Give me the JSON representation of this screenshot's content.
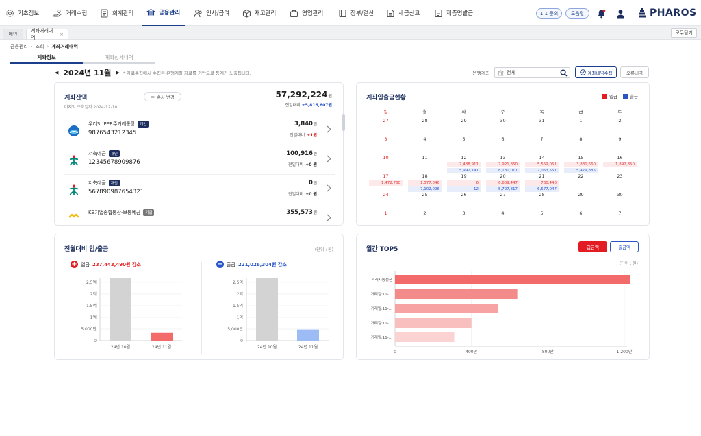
{
  "nav": {
    "items": [
      {
        "label": "기초정보",
        "icon": "gear-icon"
      },
      {
        "label": "거래수집",
        "icon": "hand-coins-icon"
      },
      {
        "label": "회계관리",
        "icon": "ledger-icon"
      },
      {
        "label": "금융관리",
        "icon": "bank-icon"
      },
      {
        "label": "인사/급여",
        "icon": "people-icon"
      },
      {
        "label": "재고관리",
        "icon": "box-icon"
      },
      {
        "label": "영업관리",
        "icon": "briefcase-icon"
      },
      {
        "label": "장부/결산",
        "icon": "book-icon"
      },
      {
        "label": "세금신고",
        "icon": "tax-doc-icon"
      },
      {
        "label": "제증명발급",
        "icon": "certificate-icon"
      }
    ],
    "inquiry": "1:1 문의",
    "help": "도움말",
    "brand": "PHAROS"
  },
  "tabs": {
    "home": "메인",
    "current": "계좌거래내역",
    "close_all": "모두닫기"
  },
  "breadcrumb": [
    "금융관리",
    "조회",
    "계좌거래내역"
  ],
  "subtabs": [
    "계좌정보",
    "계좌상세내역"
  ],
  "toolbar": {
    "month": "2024년 11월",
    "note": "* 자료수집에서 수집된 은행계좌 자료를 기반으로 등계가 노출됩니다.",
    "bank_label": "은행계좌",
    "bank_value": "전체",
    "collect_btn": "계좌내역수집",
    "error_btn": "오류내역"
  },
  "balance": {
    "title": "계좌잔액",
    "order_btn": "순서 변경",
    "last_date": "마지막 조회일자 2024-12-10",
    "total": "57,292,224",
    "unit": "원",
    "total_diff_label": "전일대비",
    "total_diff": "+5,816,607원",
    "accounts": [
      {
        "name": "우리SUPER주거래통장",
        "badge": "개인",
        "number": "9876543212345",
        "balance": "3,840",
        "unit": "원",
        "diff_label": "전일대비",
        "diff": "+1원",
        "logo": "woori-logo"
      },
      {
        "name": "저축예금",
        "badge": "개인",
        "number": "12345678909876",
        "balance": "100,916",
        "unit": "원",
        "diff_label": "전일대비",
        "diff": "+0 원",
        "logo": "hana-logo"
      },
      {
        "name": "저축예금",
        "badge": "개인",
        "number": "567890987654321",
        "balance": "0",
        "unit": "원",
        "diff_label": "전일대비",
        "diff": "+0 원",
        "logo": "hana-logo"
      },
      {
        "name": "KB기업종합통장-보통예금",
        "badge": "기업",
        "number": "",
        "balance": "355,573",
        "unit": "원",
        "diff_label": "",
        "diff": "",
        "logo": "kb-logo"
      }
    ]
  },
  "calendar": {
    "title": "계좌입출금현황",
    "legend_in": "입금",
    "legend_out": "출금",
    "color_in": "#e31b23",
    "color_out": "#2a55c6",
    "weekdays": [
      "일",
      "월",
      "화",
      "수",
      "목",
      "금",
      "토"
    ],
    "weeks": [
      [
        {
          "d": "27"
        },
        {
          "d": "28"
        },
        {
          "d": "29"
        },
        {
          "d": "30"
        },
        {
          "d": "31"
        },
        {
          "d": "1"
        },
        {
          "d": "2"
        }
      ],
      [
        {
          "d": "3"
        },
        {
          "d": "4"
        },
        {
          "d": "5"
        },
        {
          "d": "6"
        },
        {
          "d": "7"
        },
        {
          "d": "8"
        },
        {
          "d": "9"
        }
      ],
      [
        {
          "d": "10"
        },
        {
          "d": "11"
        },
        {
          "d": "12",
          "in": "7,488,911",
          "out": "5,992,741"
        },
        {
          "d": "13",
          "in": "7,921,850",
          "out": "8,130,011"
        },
        {
          "d": "14",
          "in": "5,559,051",
          "out": "7,053,551"
        },
        {
          "d": "15",
          "in": "3,831,660",
          "out": "5,479,885"
        },
        {
          "d": "16",
          "in": "1,892,850"
        }
      ],
      [
        {
          "d": "17",
          "in": "1,472,760"
        },
        {
          "d": "18",
          "in": "1,577,046",
          "out": "7,102,096"
        },
        {
          "d": "19",
          "in": "6",
          "out": "12"
        },
        {
          "d": "20",
          "in": "6,609,447",
          "out": "5,727,817"
        },
        {
          "d": "21",
          "in": "760,448",
          "out": "6,577,047"
        },
        {
          "d": "22"
        },
        {
          "d": "23"
        }
      ],
      [
        {
          "d": "24"
        },
        {
          "d": "25"
        },
        {
          "d": "26"
        },
        {
          "d": "27"
        },
        {
          "d": "28"
        },
        {
          "d": "29"
        },
        {
          "d": "30"
        }
      ],
      [
        {
          "d": "1"
        },
        {
          "d": "2"
        },
        {
          "d": "3"
        },
        {
          "d": "4"
        },
        {
          "d": "5"
        },
        {
          "d": "6"
        },
        {
          "d": "7"
        }
      ]
    ]
  },
  "compare": {
    "title": "전월대비 입/출금",
    "unit": "(단위 : 원)",
    "in_label": "입금",
    "in_value": "237,443,490원 감소",
    "out_label": "출금",
    "out_value": "221,026,304원 감소"
  },
  "top5": {
    "title": "월간 TOP5",
    "btn_in": "입금액",
    "btn_out": "출금액",
    "unit": "(단위 : 원)"
  },
  "chart_data": [
    {
      "type": "bar",
      "categories": [
        "24년 10월",
        "24년 11월"
      ],
      "series": [
        {
          "name": "입금",
          "values": [
            270000000,
            33000000
          ]
        }
      ],
      "colors": [
        "#d3d3d3",
        "#f26a6a"
      ],
      "yticks": [
        "0",
        "5,000만",
        "1억",
        "1.5억",
        "2억",
        "2.5억"
      ],
      "ylim": [
        0,
        270000000
      ],
      "grid": true
    },
    {
      "type": "bar",
      "categories": [
        "24년 10월",
        "24년 11월"
      ],
      "series": [
        {
          "name": "출금",
          "values": [
            270000000,
            48000000
          ]
        }
      ],
      "colors": [
        "#d3d3d3",
        "#9dbcf5"
      ],
      "yticks": [
        "0",
        "5,000만",
        "1억",
        "1.5억",
        "2억",
        "2.5억"
      ],
      "ylim": [
        0,
        270000000
      ],
      "grid": true
    },
    {
      "type": "bar",
      "orientation": "horizontal",
      "categories": [
        "거래자동정산",
        "거래일:11-...",
        "거래일:11-...",
        "거래일:11-...",
        "거래일:11-..."
      ],
      "values": [
        12300000,
        6400000,
        5400000,
        4000000,
        3100000
      ],
      "colors": [
        "#f26a6a",
        "#f48b8b",
        "#f7a3a3",
        "#f9bebe",
        "#fbd3d3"
      ],
      "xticks": [
        "0",
        "400만",
        "800만",
        "1,200만"
      ],
      "xlim": [
        0,
        12000000
      ],
      "grid": true
    }
  ]
}
